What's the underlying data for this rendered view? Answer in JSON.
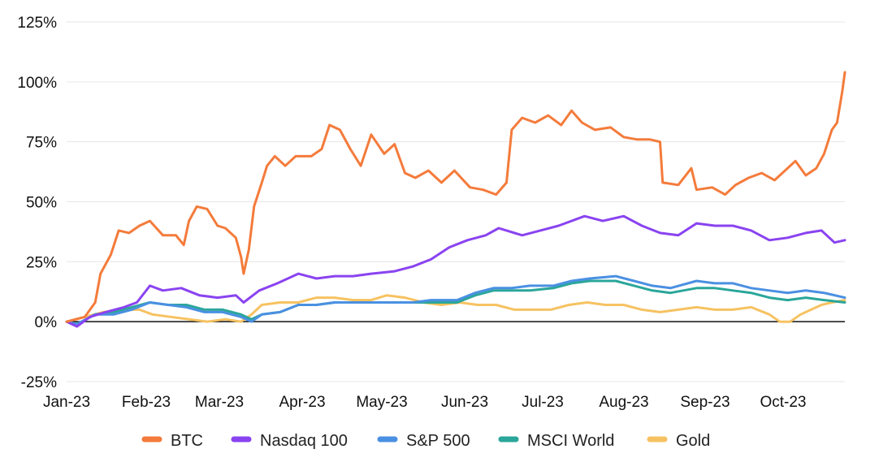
{
  "chart_data": {
    "type": "line",
    "title": "",
    "xlabel": "",
    "ylabel": "",
    "ylim": [
      -25,
      125
    ],
    "y_ticks": [
      -25,
      0,
      25,
      50,
      75,
      100,
      125
    ],
    "y_tick_labels": [
      "-25%",
      "0%",
      "25%",
      "50%",
      "75%",
      "100%",
      "125%"
    ],
    "x_tick_labels": [
      "Jan-23",
      "Feb-23",
      "Mar-23",
      "Apr-23",
      "May-23",
      "Jun-23",
      "Jul-23",
      "Aug-23",
      "Sep-23",
      "Oct-23"
    ],
    "x_range": [
      "2023-01-01",
      "2023-10-27"
    ],
    "grid": "horizontal",
    "zero_line": true,
    "legend_position": "bottom",
    "series": [
      {
        "name": "BTC",
        "color": "#f47b3b",
        "points": [
          [
            "2023-01-01",
            0
          ],
          [
            "2023-01-08",
            2
          ],
          [
            "2023-01-12",
            8
          ],
          [
            "2023-01-14",
            20
          ],
          [
            "2023-01-18",
            28
          ],
          [
            "2023-01-21",
            38
          ],
          [
            "2023-01-25",
            37
          ],
          [
            "2023-01-29",
            40
          ],
          [
            "2023-02-02",
            42
          ],
          [
            "2023-02-07",
            36
          ],
          [
            "2023-02-12",
            36
          ],
          [
            "2023-02-15",
            32
          ],
          [
            "2023-02-17",
            42
          ],
          [
            "2023-02-20",
            48
          ],
          [
            "2023-02-24",
            47
          ],
          [
            "2023-02-28",
            40
          ],
          [
            "2023-03-03",
            39
          ],
          [
            "2023-03-07",
            35
          ],
          [
            "2023-03-09",
            27
          ],
          [
            "2023-03-10",
            20
          ],
          [
            "2023-03-12",
            30
          ],
          [
            "2023-03-14",
            48
          ],
          [
            "2023-03-17",
            58
          ],
          [
            "2023-03-19",
            65
          ],
          [
            "2023-03-22",
            69
          ],
          [
            "2023-03-26",
            65
          ],
          [
            "2023-03-30",
            69
          ],
          [
            "2023-04-05",
            69
          ],
          [
            "2023-04-09",
            72
          ],
          [
            "2023-04-12",
            82
          ],
          [
            "2023-04-16",
            80
          ],
          [
            "2023-04-20",
            72
          ],
          [
            "2023-04-24",
            65
          ],
          [
            "2023-04-28",
            78
          ],
          [
            "2023-05-03",
            70
          ],
          [
            "2023-05-07",
            74
          ],
          [
            "2023-05-11",
            62
          ],
          [
            "2023-05-15",
            60
          ],
          [
            "2023-05-20",
            63
          ],
          [
            "2023-05-25",
            58
          ],
          [
            "2023-05-30",
            63
          ],
          [
            "2023-06-05",
            56
          ],
          [
            "2023-06-10",
            55
          ],
          [
            "2023-06-15",
            53
          ],
          [
            "2023-06-19",
            58
          ],
          [
            "2023-06-21",
            80
          ],
          [
            "2023-06-25",
            85
          ],
          [
            "2023-06-30",
            83
          ],
          [
            "2023-07-05",
            86
          ],
          [
            "2023-07-10",
            82
          ],
          [
            "2023-07-14",
            88
          ],
          [
            "2023-07-18",
            83
          ],
          [
            "2023-07-23",
            80
          ],
          [
            "2023-07-29",
            81
          ],
          [
            "2023-08-03",
            77
          ],
          [
            "2023-08-08",
            76
          ],
          [
            "2023-08-13",
            76
          ],
          [
            "2023-08-17",
            75
          ],
          [
            "2023-08-18",
            58
          ],
          [
            "2023-08-24",
            57
          ],
          [
            "2023-08-29",
            64
          ],
          [
            "2023-08-31",
            55
          ],
          [
            "2023-09-06",
            56
          ],
          [
            "2023-09-11",
            53
          ],
          [
            "2023-09-15",
            57
          ],
          [
            "2023-09-20",
            60
          ],
          [
            "2023-09-25",
            62
          ],
          [
            "2023-09-30",
            59
          ],
          [
            "2023-10-04",
            63
          ],
          [
            "2023-10-08",
            67
          ],
          [
            "2023-10-12",
            61
          ],
          [
            "2023-10-16",
            64
          ],
          [
            "2023-10-19",
            70
          ],
          [
            "2023-10-22",
            80
          ],
          [
            "2023-10-24",
            83
          ],
          [
            "2023-10-26",
            96
          ],
          [
            "2023-10-27",
            104
          ]
        ]
      },
      {
        "name": "Nasdaq 100",
        "color": "#8a43f0",
        "points": [
          [
            "2023-01-01",
            0
          ],
          [
            "2023-01-05",
            -2
          ],
          [
            "2023-01-10",
            2
          ],
          [
            "2023-01-16",
            4
          ],
          [
            "2023-01-23",
            6
          ],
          [
            "2023-01-28",
            8
          ],
          [
            "2023-02-02",
            15
          ],
          [
            "2023-02-07",
            13
          ],
          [
            "2023-02-14",
            14
          ],
          [
            "2023-02-21",
            11
          ],
          [
            "2023-02-28",
            10
          ],
          [
            "2023-03-07",
            11
          ],
          [
            "2023-03-10",
            8
          ],
          [
            "2023-03-16",
            13
          ],
          [
            "2023-03-23",
            16
          ],
          [
            "2023-03-31",
            20
          ],
          [
            "2023-04-07",
            18
          ],
          [
            "2023-04-14",
            19
          ],
          [
            "2023-04-21",
            19
          ],
          [
            "2023-04-28",
            20
          ],
          [
            "2023-05-07",
            21
          ],
          [
            "2023-05-14",
            23
          ],
          [
            "2023-05-21",
            26
          ],
          [
            "2023-05-28",
            31
          ],
          [
            "2023-06-04",
            34
          ],
          [
            "2023-06-11",
            36
          ],
          [
            "2023-06-16",
            39
          ],
          [
            "2023-06-25",
            36
          ],
          [
            "2023-07-02",
            38
          ],
          [
            "2023-07-09",
            40
          ],
          [
            "2023-07-19",
            44
          ],
          [
            "2023-07-26",
            42
          ],
          [
            "2023-08-03",
            44
          ],
          [
            "2023-08-10",
            40
          ],
          [
            "2023-08-17",
            37
          ],
          [
            "2023-08-24",
            36
          ],
          [
            "2023-08-31",
            41
          ],
          [
            "2023-09-07",
            40
          ],
          [
            "2023-09-14",
            40
          ],
          [
            "2023-09-21",
            38
          ],
          [
            "2023-09-28",
            34
          ],
          [
            "2023-10-05",
            35
          ],
          [
            "2023-10-12",
            37
          ],
          [
            "2023-10-18",
            38
          ],
          [
            "2023-10-23",
            33
          ],
          [
            "2023-10-27",
            34
          ]
        ]
      },
      {
        "name": "S&P 500",
        "color": "#4a90e2",
        "points": [
          [
            "2023-01-01",
            0
          ],
          [
            "2023-01-05",
            -1
          ],
          [
            "2023-01-12",
            3
          ],
          [
            "2023-01-19",
            3
          ],
          [
            "2023-01-26",
            5
          ],
          [
            "2023-02-02",
            8
          ],
          [
            "2023-02-09",
            7
          ],
          [
            "2023-02-16",
            6
          ],
          [
            "2023-02-23",
            4
          ],
          [
            "2023-03-02",
            4
          ],
          [
            "2023-03-09",
            2
          ],
          [
            "2023-03-13",
            0
          ],
          [
            "2023-03-17",
            3
          ],
          [
            "2023-03-24",
            4
          ],
          [
            "2023-03-31",
            7
          ],
          [
            "2023-04-07",
            7
          ],
          [
            "2023-04-14",
            8
          ],
          [
            "2023-04-21",
            8
          ],
          [
            "2023-04-28",
            8
          ],
          [
            "2023-05-07",
            8
          ],
          [
            "2023-05-14",
            8
          ],
          [
            "2023-05-21",
            9
          ],
          [
            "2023-05-31",
            9
          ],
          [
            "2023-06-07",
            12
          ],
          [
            "2023-06-14",
            14
          ],
          [
            "2023-06-21",
            14
          ],
          [
            "2023-06-28",
            15
          ],
          [
            "2023-07-07",
            15
          ],
          [
            "2023-07-14",
            17
          ],
          [
            "2023-07-21",
            18
          ],
          [
            "2023-07-31",
            19
          ],
          [
            "2023-08-07",
            17
          ],
          [
            "2023-08-14",
            15
          ],
          [
            "2023-08-21",
            14
          ],
          [
            "2023-08-31",
            17
          ],
          [
            "2023-09-07",
            16
          ],
          [
            "2023-09-14",
            16
          ],
          [
            "2023-09-21",
            14
          ],
          [
            "2023-09-28",
            13
          ],
          [
            "2023-10-05",
            12
          ],
          [
            "2023-10-12",
            13
          ],
          [
            "2023-10-19",
            12
          ],
          [
            "2023-10-27",
            10
          ]
        ]
      },
      {
        "name": "MSCI World",
        "color": "#2aa69a",
        "points": [
          [
            "2023-01-01",
            0
          ],
          [
            "2023-01-05",
            -1
          ],
          [
            "2023-01-12",
            3
          ],
          [
            "2023-01-19",
            4
          ],
          [
            "2023-01-26",
            6
          ],
          [
            "2023-02-02",
            8
          ],
          [
            "2023-02-09",
            7
          ],
          [
            "2023-02-16",
            7
          ],
          [
            "2023-02-23",
            5
          ],
          [
            "2023-03-02",
            5
          ],
          [
            "2023-03-09",
            3
          ],
          [
            "2023-03-13",
            1
          ],
          [
            "2023-03-17",
            3
          ],
          [
            "2023-03-24",
            4
          ],
          [
            "2023-03-31",
            7
          ],
          [
            "2023-04-07",
            7
          ],
          [
            "2023-04-14",
            8
          ],
          [
            "2023-04-21",
            8
          ],
          [
            "2023-04-28",
            8
          ],
          [
            "2023-05-07",
            8
          ],
          [
            "2023-05-14",
            8
          ],
          [
            "2023-05-21",
            8
          ],
          [
            "2023-05-31",
            8
          ],
          [
            "2023-06-07",
            11
          ],
          [
            "2023-06-14",
            13
          ],
          [
            "2023-06-21",
            13
          ],
          [
            "2023-06-28",
            13
          ],
          [
            "2023-07-07",
            14
          ],
          [
            "2023-07-14",
            16
          ],
          [
            "2023-07-21",
            17
          ],
          [
            "2023-07-31",
            17
          ],
          [
            "2023-08-07",
            15
          ],
          [
            "2023-08-14",
            13
          ],
          [
            "2023-08-21",
            12
          ],
          [
            "2023-08-31",
            14
          ],
          [
            "2023-09-07",
            14
          ],
          [
            "2023-09-14",
            13
          ],
          [
            "2023-09-21",
            12
          ],
          [
            "2023-09-28",
            10
          ],
          [
            "2023-10-05",
            9
          ],
          [
            "2023-10-12",
            10
          ],
          [
            "2023-10-19",
            9
          ],
          [
            "2023-10-27",
            8
          ]
        ]
      },
      {
        "name": "Gold",
        "color": "#f6c261",
        "points": [
          [
            "2023-01-01",
            0
          ],
          [
            "2023-01-08",
            2
          ],
          [
            "2023-01-15",
            4
          ],
          [
            "2023-01-22",
            5
          ],
          [
            "2023-01-29",
            5
          ],
          [
            "2023-02-03",
            3
          ],
          [
            "2023-02-10",
            2
          ],
          [
            "2023-02-17",
            1
          ],
          [
            "2023-02-24",
            0
          ],
          [
            "2023-03-03",
            1
          ],
          [
            "2023-03-09",
            0
          ],
          [
            "2023-03-13",
            3
          ],
          [
            "2023-03-17",
            7
          ],
          [
            "2023-03-24",
            8
          ],
          [
            "2023-03-31",
            8
          ],
          [
            "2023-04-07",
            10
          ],
          [
            "2023-04-14",
            10
          ],
          [
            "2023-04-21",
            9
          ],
          [
            "2023-04-28",
            9
          ],
          [
            "2023-05-04",
            11
          ],
          [
            "2023-05-11",
            10
          ],
          [
            "2023-05-18",
            8
          ],
          [
            "2023-05-25",
            7
          ],
          [
            "2023-06-01",
            8
          ],
          [
            "2023-06-08",
            7
          ],
          [
            "2023-06-15",
            7
          ],
          [
            "2023-06-22",
            5
          ],
          [
            "2023-06-29",
            5
          ],
          [
            "2023-07-06",
            5
          ],
          [
            "2023-07-13",
            7
          ],
          [
            "2023-07-20",
            8
          ],
          [
            "2023-07-27",
            7
          ],
          [
            "2023-08-03",
            7
          ],
          [
            "2023-08-10",
            5
          ],
          [
            "2023-08-17",
            4
          ],
          [
            "2023-08-24",
            5
          ],
          [
            "2023-08-31",
            6
          ],
          [
            "2023-09-07",
            5
          ],
          [
            "2023-09-14",
            5
          ],
          [
            "2023-09-21",
            6
          ],
          [
            "2023-09-28",
            3
          ],
          [
            "2023-10-02",
            0
          ],
          [
            "2023-10-06",
            0
          ],
          [
            "2023-10-10",
            3
          ],
          [
            "2023-10-14",
            5
          ],
          [
            "2023-10-18",
            7
          ],
          [
            "2023-10-22",
            8
          ],
          [
            "2023-10-27",
            9
          ]
        ]
      }
    ]
  }
}
